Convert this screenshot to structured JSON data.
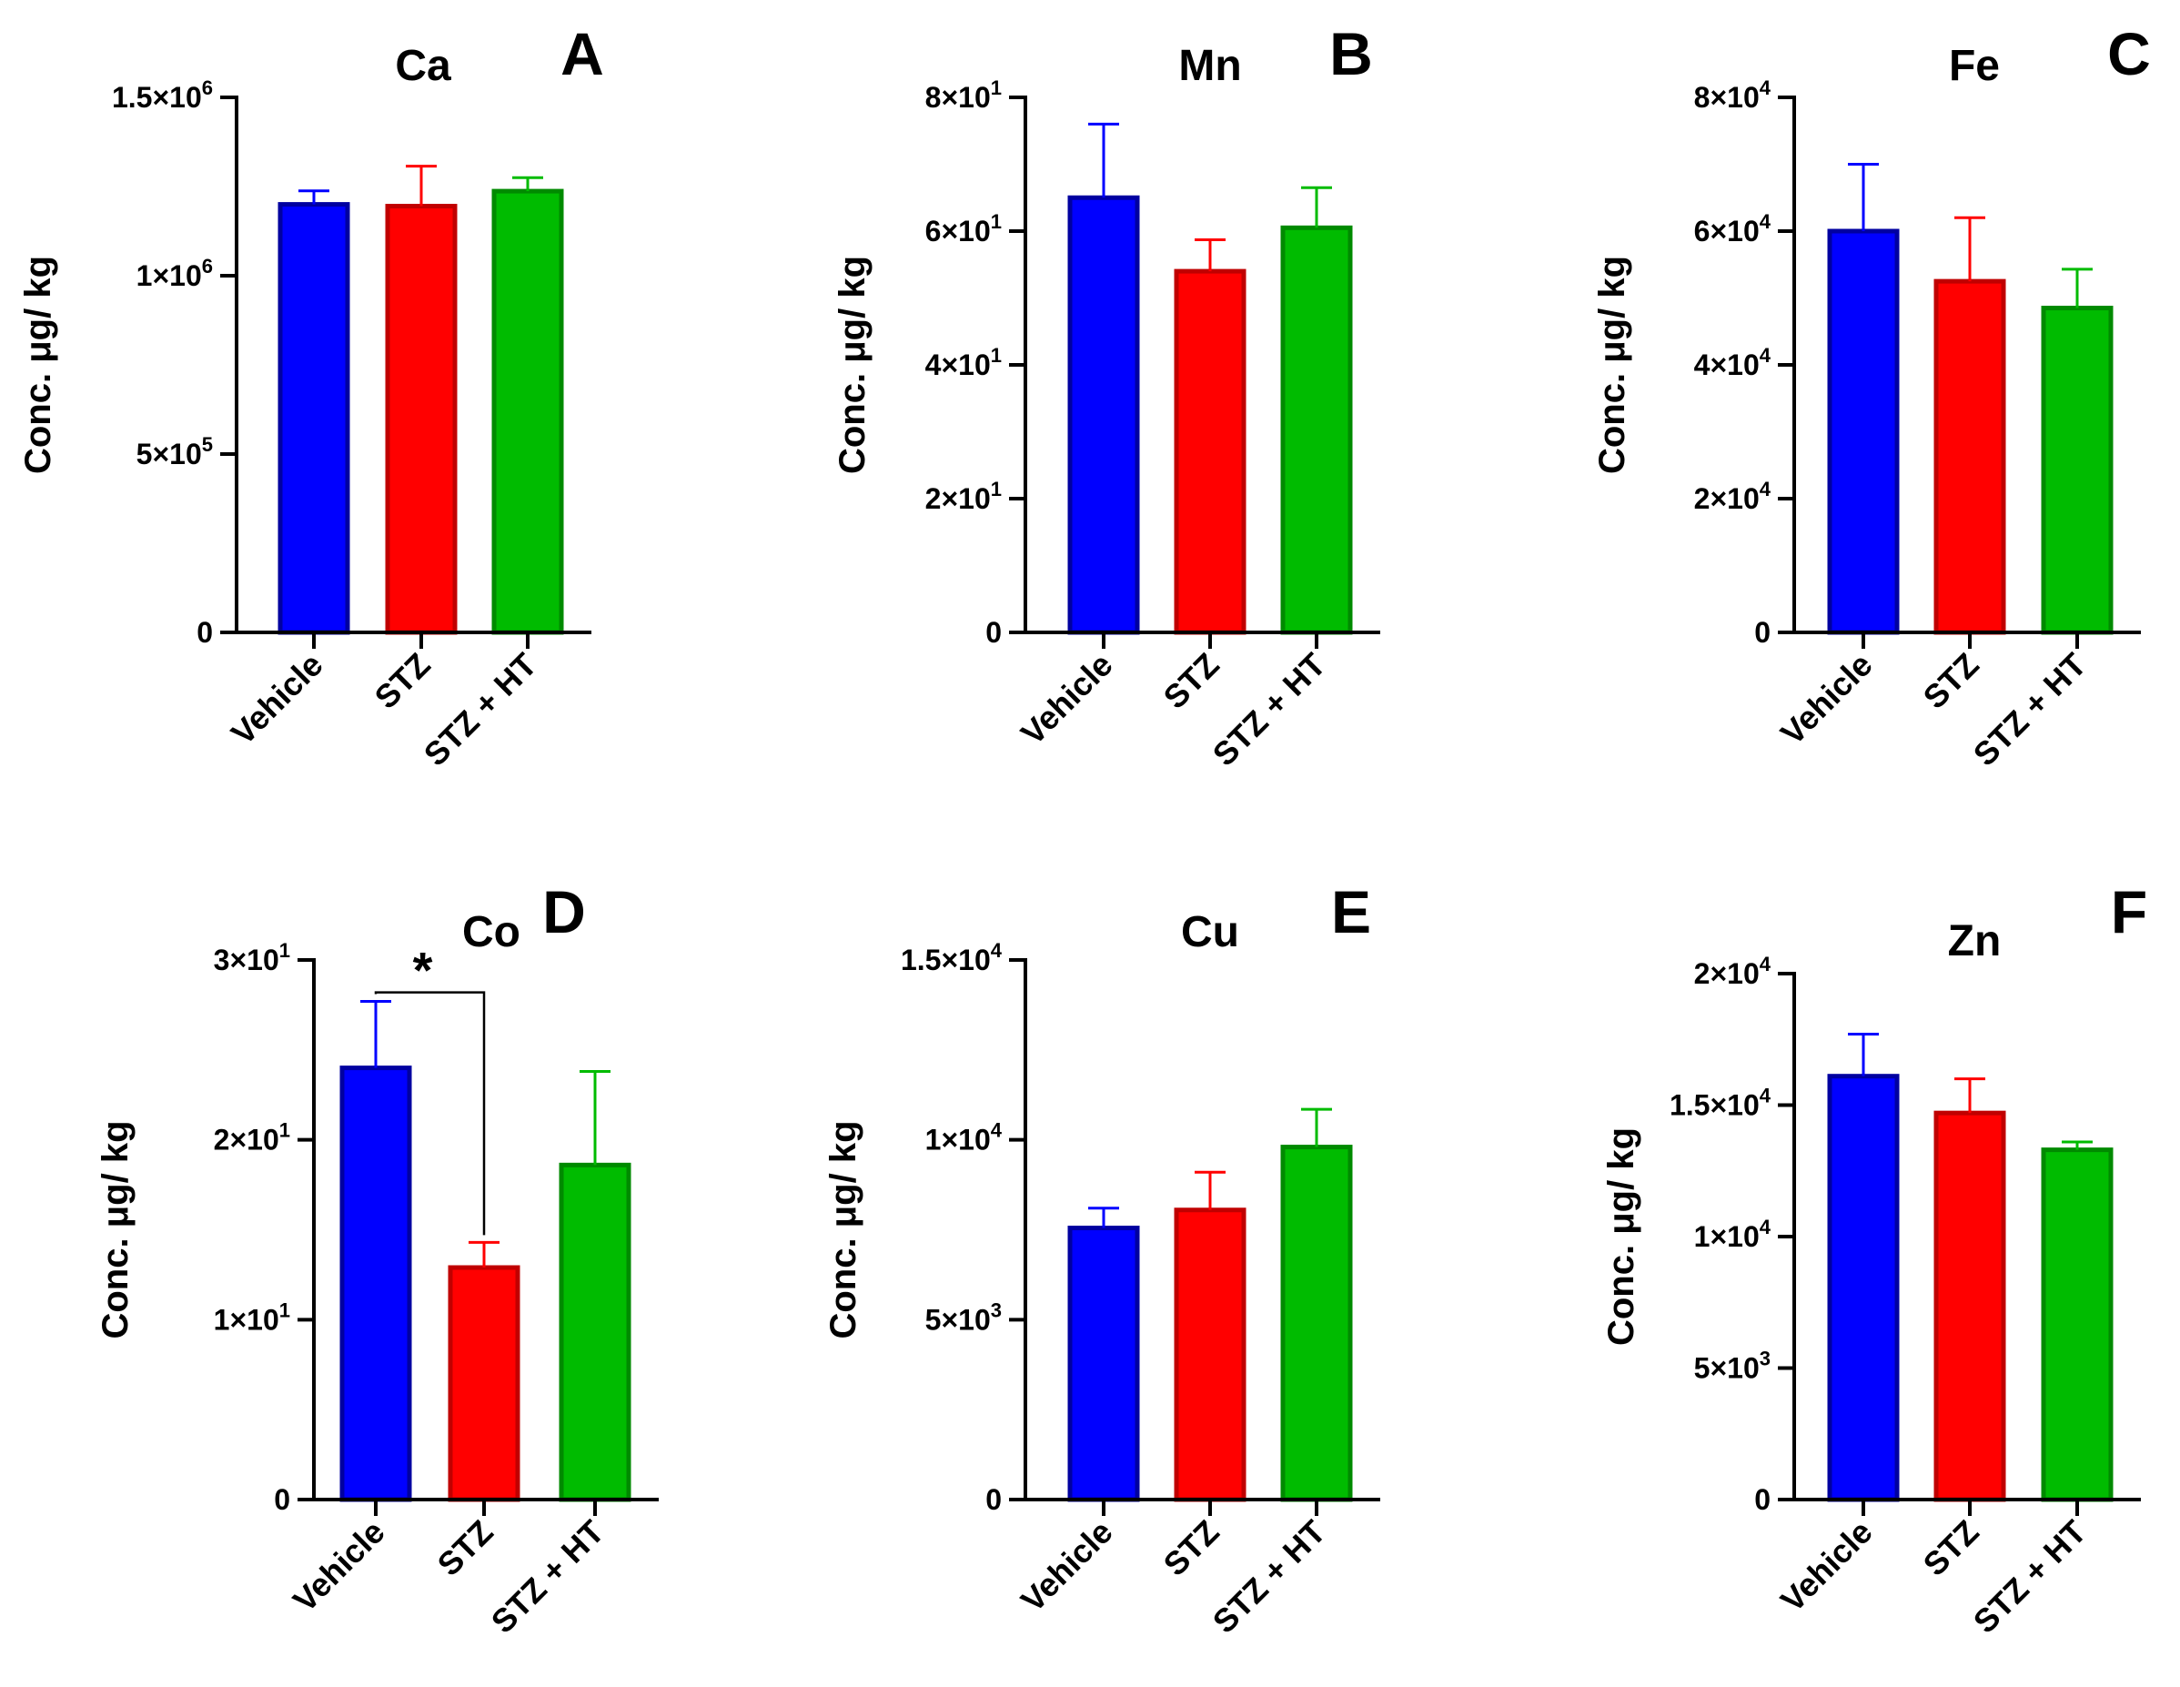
{
  "figure": {
    "categories": [
      "Vehicle",
      "STZ",
      "STZ + HT"
    ],
    "series_colors": [
      "#0000ff",
      "#ff0000",
      "#00bb00"
    ],
    "series_edge_colors": [
      "#0000a0",
      "#c00000",
      "#008a00"
    ]
  },
  "chart_data": [
    {
      "type": "bar",
      "panel": "A",
      "title": "Ca",
      "ylabel": "Conc. μg/ kg",
      "categories": [
        "Vehicle",
        "STZ",
        "STZ + HT"
      ],
      "values": [
        1200000,
        1195000,
        1237000
      ],
      "errors": [
        38000,
        112000,
        38000
      ],
      "ylim": [
        0,
        1500000
      ],
      "yticks": [
        {
          "value": 0,
          "mantissa": "0",
          "exp": ""
        },
        {
          "value": 500000,
          "mantissa": "5×10",
          "exp": "5"
        },
        {
          "value": 1000000,
          "mantissa": "1×10",
          "exp": "6"
        },
        {
          "value": 1500000,
          "mantissa": "1.5×10",
          "exp": "6"
        }
      ],
      "annotations": []
    },
    {
      "type": "bar",
      "panel": "B",
      "title": "Mn",
      "ylabel": "Conc. μg/ kg",
      "categories": [
        "Vehicle",
        "STZ",
        "STZ + HT"
      ],
      "values": [
        65,
        54,
        60.5
      ],
      "errors": [
        11,
        4.7,
        6
      ],
      "ylim": [
        0,
        80
      ],
      "yticks": [
        {
          "value": 0,
          "mantissa": "0",
          "exp": ""
        },
        {
          "value": 20,
          "mantissa": "2×10",
          "exp": "1"
        },
        {
          "value": 40,
          "mantissa": "4×10",
          "exp": "1"
        },
        {
          "value": 60,
          "mantissa": "6×10",
          "exp": "1"
        },
        {
          "value": 80,
          "mantissa": "8×10",
          "exp": "1"
        }
      ],
      "annotations": []
    },
    {
      "type": "bar",
      "panel": "C",
      "title": "Fe",
      "ylabel": "Conc. μg/ kg",
      "categories": [
        "Vehicle",
        "STZ",
        "STZ + HT"
      ],
      "values": [
        60000,
        52500,
        48500
      ],
      "errors": [
        10000,
        9500,
        5800
      ],
      "ylim": [
        0,
        80000
      ],
      "yticks": [
        {
          "value": 0,
          "mantissa": "0",
          "exp": ""
        },
        {
          "value": 20000,
          "mantissa": "2×10",
          "exp": "4"
        },
        {
          "value": 40000,
          "mantissa": "4×10",
          "exp": "4"
        },
        {
          "value": 60000,
          "mantissa": "6×10",
          "exp": "4"
        },
        {
          "value": 80000,
          "mantissa": "8×10",
          "exp": "4"
        }
      ],
      "annotations": []
    },
    {
      "type": "bar",
      "panel": "D",
      "title": "Co",
      "ylabel": "Conc. μg/ kg",
      "categories": [
        "Vehicle",
        "STZ",
        "STZ + HT"
      ],
      "values": [
        24,
        12.9,
        18.6
      ],
      "errors": [
        3.7,
        1.4,
        5.2
      ],
      "ylim": [
        0,
        30
      ],
      "yticks": [
        {
          "value": 0,
          "mantissa": "0",
          "exp": ""
        },
        {
          "value": 10,
          "mantissa": "1×10",
          "exp": "1"
        },
        {
          "value": 20,
          "mantissa": "2×10",
          "exp": "1"
        },
        {
          "value": 30,
          "mantissa": "3×10",
          "exp": "1"
        }
      ],
      "annotations": [
        {
          "text": "*",
          "from": 0,
          "to": 1,
          "level": 28.2
        }
      ]
    },
    {
      "type": "bar",
      "panel": "E",
      "title": "Cu",
      "ylabel": "Conc. μg/ kg",
      "categories": [
        "Vehicle",
        "STZ",
        "STZ + HT"
      ],
      "values": [
        7550,
        8050,
        9800
      ],
      "errors": [
        550,
        1050,
        1050
      ],
      "ylim": [
        0,
        15000
      ],
      "yticks": [
        {
          "value": 0,
          "mantissa": "0",
          "exp": ""
        },
        {
          "value": 5000,
          "mantissa": "5×10",
          "exp": "3"
        },
        {
          "value": 10000,
          "mantissa": "1×10",
          "exp": "4"
        },
        {
          "value": 15000,
          "mantissa": "1.5×10",
          "exp": "4"
        }
      ],
      "annotations": []
    },
    {
      "type": "bar",
      "panel": "F",
      "title": "Zn",
      "ylabel": "Conc. μg/ kg",
      "categories": [
        "Vehicle",
        "STZ",
        "STZ + HT"
      ],
      "values": [
        16100,
        14700,
        13300
      ],
      "errors": [
        1600,
        1300,
        300
      ],
      "ylim": [
        0,
        20000
      ],
      "yticks": [
        {
          "value": 0,
          "mantissa": "0",
          "exp": ""
        },
        {
          "value": 5000,
          "mantissa": "5×10",
          "exp": "3"
        },
        {
          "value": 10000,
          "mantissa": "1×10",
          "exp": "4"
        },
        {
          "value": 15000,
          "mantissa": "1.5×10",
          "exp": "4"
        },
        {
          "value": 20000,
          "mantissa": "2×10",
          "exp": "4"
        }
      ],
      "annotations": []
    }
  ]
}
